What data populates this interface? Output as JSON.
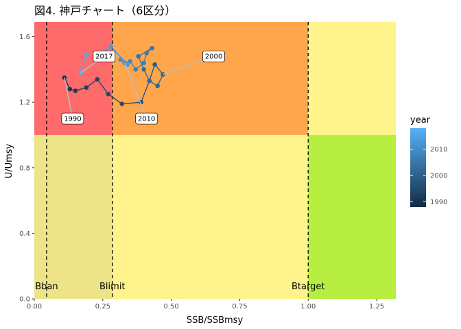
{
  "chart_data": {
    "type": "scatter",
    "title": "図4. 神戸チャート（6区分）",
    "xlabel": "SSB/SSBmsy",
    "ylabel": "U/Umsy",
    "xlim": [
      0,
      1.32
    ],
    "ylim": [
      0,
      1.69
    ],
    "x_ticks": [
      {
        "value": 0,
        "label": "0.00"
      },
      {
        "value": 0.25,
        "label": "0.25"
      },
      {
        "value": 0.5,
        "label": "0.50"
      },
      {
        "value": 0.75,
        "label": "0.75"
      },
      {
        "value": 1.0,
        "label": "1.00"
      },
      {
        "value": 1.25,
        "label": "1.25"
      }
    ],
    "y_ticks": [
      {
        "value": 0,
        "label": "0.0"
      },
      {
        "value": 0.4,
        "label": "0.4"
      },
      {
        "value": 0.8,
        "label": "0.8"
      },
      {
        "value": 1.2,
        "label": "1.2"
      },
      {
        "value": 1.6,
        "label": "1.6"
      }
    ],
    "grid": false,
    "zones": [
      {
        "x": [
          0,
          0.285
        ],
        "y": [
          1,
          1.69
        ],
        "color": "#ff6a6a"
      },
      {
        "x": [
          0.285,
          1.0
        ],
        "y": [
          1,
          1.69
        ],
        "color": "#ffa64d"
      },
      {
        "x": [
          1.0,
          1.32
        ],
        "y": [
          1,
          1.69
        ],
        "color": "#fff38b"
      },
      {
        "x": [
          0,
          0.285
        ],
        "y": [
          0,
          1
        ],
        "color": "#ede48a"
      },
      {
        "x": [
          0.285,
          1.0
        ],
        "y": [
          0,
          1
        ],
        "color": "#fff38b"
      },
      {
        "x": [
          1.0,
          1.32
        ],
        "y": [
          0,
          1
        ],
        "color": "#b7ee3f"
      }
    ],
    "reference_lines": [
      {
        "name": "Bban",
        "x": 0.045
      },
      {
        "name": "Blimit",
        "x": 0.285
      },
      {
        "name": "Btarget",
        "x": 1.0
      }
    ],
    "series": [
      {
        "years": [
          1990,
          1991,
          1992,
          1993,
          1994,
          1995,
          1996,
          1997,
          1998,
          1999,
          2000,
          2001,
          2002,
          2003,
          2004,
          2005,
          2006,
          2007,
          2008,
          2009,
          2010,
          2011,
          2012,
          2013,
          2014,
          2015,
          2016,
          2017
        ],
        "x": [
          0.11,
          0.13,
          0.15,
          0.19,
          0.23,
          0.27,
          0.32,
          0.39,
          0.42,
          0.44,
          0.47,
          0.45,
          0.42,
          0.4,
          0.38,
          0.43,
          0.41,
          0.4,
          0.37,
          0.35,
          0.33,
          0.315,
          0.34,
          0.28,
          0.26,
          0.245,
          0.19,
          0.17
        ],
        "y": [
          1.35,
          1.28,
          1.27,
          1.29,
          1.34,
          1.25,
          1.19,
          1.2,
          1.33,
          1.43,
          1.37,
          1.3,
          1.33,
          1.4,
          1.48,
          1.53,
          1.5,
          1.44,
          1.4,
          1.45,
          1.44,
          1.46,
          1.43,
          1.54,
          1.51,
          1.48,
          1.49,
          1.38
        ]
      }
    ],
    "point_labels": [
      {
        "year": 1990,
        "text": "1990",
        "at": [
          0.14,
          1.1
        ]
      },
      {
        "year": 2000,
        "text": "2000",
        "at": [
          0.655,
          1.48
        ]
      },
      {
        "year": 2010,
        "text": "2010",
        "at": [
          0.41,
          1.1
        ]
      },
      {
        "year": 2017,
        "text": "2017",
        "at": [
          0.255,
          1.48
        ]
      }
    ],
    "legend": {
      "title": "year",
      "position": "right",
      "ticks": [
        1990,
        2000,
        2010
      ],
      "range": [
        1988,
        2018
      ],
      "color_low": "#132b43",
      "color_high": "#56b1f7"
    }
  }
}
